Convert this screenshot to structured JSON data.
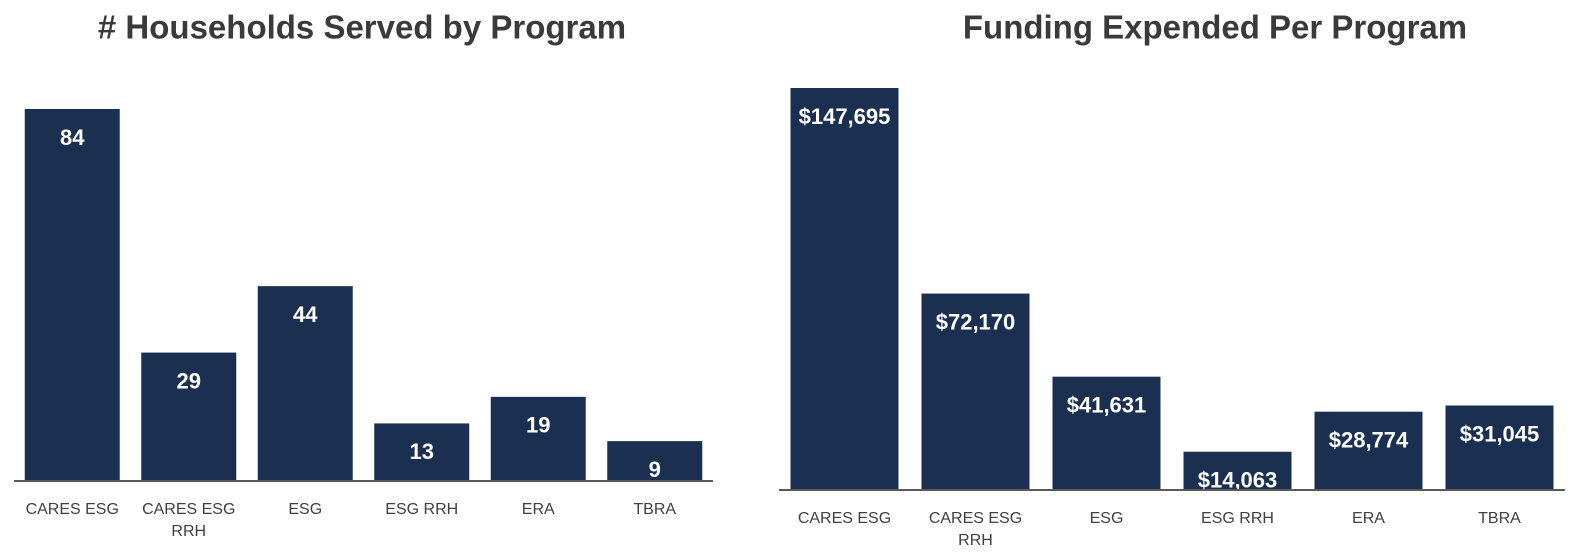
{
  "chart_data": [
    {
      "type": "bar",
      "title": "# Households Served by Program",
      "categories": [
        "CARES ESG",
        "CARES ESG RRH",
        "ESG",
        "ESG RRH",
        "ERA",
        "TBRA"
      ],
      "values": [
        84,
        29,
        44,
        13,
        19,
        9
      ],
      "color": "#1b3050"
    },
    {
      "type": "bar",
      "title": "Funding Expended Per Program",
      "categories": [
        "CARES ESG",
        "CARES ESG RRH",
        "ESG",
        "ESG RRH",
        "ERA",
        "TBRA"
      ],
      "values": [
        147695,
        72170,
        41631,
        14063,
        28774,
        31045
      ],
      "value_labels": [
        "$147,695",
        "$72,170",
        "$41,631",
        "$14,063",
        "$28,774",
        "$31,045"
      ],
      "color": "#1b3050"
    }
  ]
}
